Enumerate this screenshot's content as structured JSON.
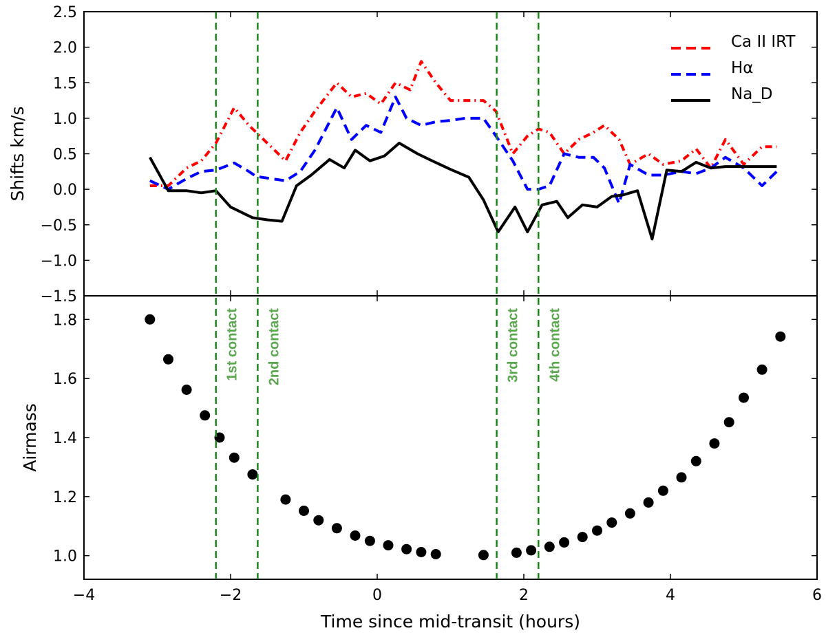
{
  "chart_data": [
    {
      "type": "line",
      "panel": "top",
      "xlim": [
        -4,
        6
      ],
      "ylim": [
        -1.5,
        2.5
      ],
      "ylabel": "Shifts km/s",
      "yticks": [
        -1.5,
        -1.0,
        -0.5,
        0.0,
        0.5,
        1.0,
        1.5,
        2.0,
        2.5
      ],
      "ytick_labels": [
        "−1.5",
        "−1.0",
        "−0.5",
        "0.0",
        "0.5",
        "1.0",
        "1.5",
        "2.0",
        "2.5"
      ],
      "series": [
        {
          "name": "Ca II IRT",
          "style": "dashdot",
          "color": "#ff0000",
          "x": [
            -3.1,
            -2.85,
            -2.6,
            -2.4,
            -2.2,
            -1.95,
            -1.75,
            -1.65,
            -1.45,
            -1.25,
            -1.05,
            -0.85,
            -0.55,
            -0.35,
            -0.15,
            0.05,
            0.25,
            0.45,
            0.6,
            0.8,
            1.0,
            1.2,
            1.45,
            1.62,
            1.85,
            2.05,
            2.2,
            2.35,
            2.55,
            2.75,
            2.95,
            3.1,
            3.3,
            3.45,
            3.7,
            3.9,
            4.15,
            4.35,
            4.55,
            4.75,
            5.0,
            5.25,
            5.45
          ],
          "y": [
            0.05,
            0.05,
            0.3,
            0.4,
            0.65,
            1.15,
            0.9,
            0.8,
            0.6,
            0.4,
            0.8,
            1.1,
            1.5,
            1.3,
            1.35,
            1.2,
            1.5,
            1.4,
            1.8,
            1.5,
            1.25,
            1.25,
            1.25,
            1.1,
            0.5,
            0.75,
            0.85,
            0.8,
            0.5,
            0.7,
            0.8,
            0.9,
            0.7,
            0.35,
            0.5,
            0.35,
            0.4,
            0.57,
            0.3,
            0.7,
            0.35,
            0.6,
            0.6
          ]
        },
        {
          "name": "Hα",
          "style": "dashed",
          "color": "#0000ff",
          "x": [
            -3.1,
            -2.85,
            -2.6,
            -2.4,
            -2.2,
            -1.95,
            -1.75,
            -1.65,
            -1.45,
            -1.25,
            -1.05,
            -0.85,
            -0.55,
            -0.35,
            -0.15,
            0.05,
            0.25,
            0.4,
            0.6,
            0.8,
            1.0,
            1.2,
            1.45,
            1.62,
            1.85,
            2.05,
            2.2,
            2.35,
            2.55,
            2.75,
            2.95,
            3.1,
            3.3,
            3.45,
            3.7,
            3.9,
            4.15,
            4.35,
            4.55,
            4.75,
            5.0,
            5.25,
            5.45
          ],
          "y": [
            0.12,
            0.0,
            0.15,
            0.25,
            0.27,
            0.37,
            0.25,
            0.18,
            0.15,
            0.12,
            0.25,
            0.55,
            1.15,
            0.7,
            0.9,
            0.8,
            1.3,
            1.0,
            0.9,
            0.95,
            0.97,
            1.0,
            1.0,
            0.75,
            0.4,
            0.0,
            0.0,
            0.05,
            0.5,
            0.45,
            0.45,
            0.3,
            -0.2,
            0.35,
            0.2,
            0.2,
            0.25,
            0.22,
            0.3,
            0.45,
            0.3,
            0.05,
            0.25
          ]
        },
        {
          "name": "Na_D",
          "style": "solid",
          "color": "#000000",
          "x": [
            -3.1,
            -2.85,
            -2.6,
            -2.4,
            -2.2,
            -2.0,
            -1.7,
            -1.5,
            -1.3,
            -1.1,
            -0.9,
            -0.65,
            -0.45,
            -0.3,
            -0.1,
            0.1,
            0.3,
            0.55,
            0.75,
            1.0,
            1.25,
            1.45,
            1.65,
            1.88,
            2.05,
            2.25,
            2.45,
            2.6,
            2.8,
            3.0,
            3.2,
            3.35,
            3.55,
            3.75,
            3.95,
            4.15,
            4.35,
            4.55,
            4.75,
            5.0,
            5.25,
            5.45
          ],
          "y": [
            0.45,
            -0.02,
            -0.02,
            -0.05,
            -0.02,
            -0.25,
            -0.4,
            -0.43,
            -0.45,
            0.05,
            0.2,
            0.42,
            0.3,
            0.55,
            0.4,
            0.47,
            0.65,
            0.5,
            0.4,
            0.28,
            0.17,
            -0.15,
            -0.6,
            -0.25,
            -0.6,
            -0.22,
            -0.17,
            -0.4,
            -0.22,
            -0.25,
            -0.1,
            -0.08,
            -0.02,
            -0.7,
            0.27,
            0.25,
            0.38,
            0.3,
            0.32,
            0.32,
            0.32,
            0.32
          ]
        }
      ],
      "legend": {
        "position": "top-right",
        "entries": [
          "Ca II IRT",
          "Hα",
          "Na_D"
        ]
      }
    },
    {
      "type": "scatter",
      "panel": "bottom",
      "xlim": [
        -4,
        6
      ],
      "ylim": [
        0.92,
        1.88
      ],
      "xlabel": "Time since mid-transit (hours)",
      "ylabel": "Airmass",
      "xticks": [
        -4,
        -2,
        0,
        2,
        4,
        6
      ],
      "xtick_labels": [
        "−4",
        "−2",
        "0",
        "2",
        "4",
        "6"
      ],
      "yticks": [
        1.0,
        1.2,
        1.4,
        1.6,
        1.8
      ],
      "ytick_labels": [
        "1.0",
        "1.2",
        "1.4",
        "1.6",
        "1.8"
      ],
      "x": [
        -3.1,
        -2.85,
        -2.6,
        -2.35,
        -2.15,
        -1.95,
        -1.7,
        -1.25,
        -1.0,
        -0.8,
        -0.55,
        -0.3,
        -0.1,
        0.15,
        0.4,
        0.6,
        0.8,
        1.45,
        1.9,
        2.1,
        2.35,
        2.55,
        2.8,
        3.0,
        3.2,
        3.45,
        3.7,
        3.9,
        4.15,
        4.35,
        4.6,
        4.8,
        5.0,
        5.25,
        5.5
      ],
      "y": [
        1.8,
        1.665,
        1.562,
        1.475,
        1.4,
        1.332,
        1.275,
        1.19,
        1.152,
        1.12,
        1.093,
        1.068,
        1.05,
        1.035,
        1.022,
        1.012,
        1.005,
        1.002,
        1.01,
        1.018,
        1.03,
        1.045,
        1.063,
        1.085,
        1.112,
        1.143,
        1.18,
        1.22,
        1.265,
        1.32,
        1.38,
        1.452,
        1.535,
        1.63,
        1.742
      ]
    }
  ],
  "contacts": [
    {
      "x": -2.2,
      "label": "1st contact"
    },
    {
      "x": -1.63,
      "label": "2nd contact"
    },
    {
      "x": 1.63,
      "label": "3rd contact"
    },
    {
      "x": 2.2,
      "label": "4th contact"
    }
  ],
  "colors": {
    "contact_line": "#1a8a1a",
    "contact_text": "#5aa84e",
    "axis": "#000000",
    "airmass_marker": "#000000"
  }
}
